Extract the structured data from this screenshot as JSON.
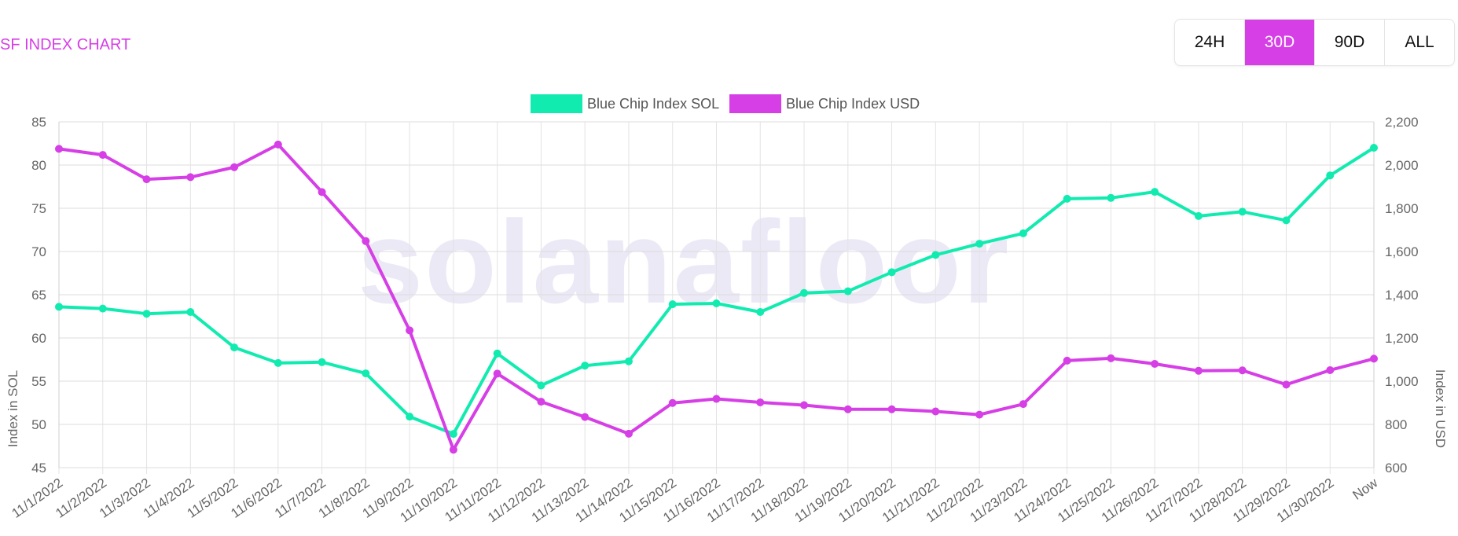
{
  "header": {
    "title": "SF INDEX CHART"
  },
  "range_buttons": [
    {
      "label": "24H",
      "active": false
    },
    {
      "label": "30D",
      "active": true
    },
    {
      "label": "90D",
      "active": false
    },
    {
      "label": "ALL",
      "active": false
    }
  ],
  "watermark": "solanafloor",
  "colors": {
    "sol": "#12ebb0",
    "usd": "#d63ee6",
    "active_button": "#d63ee6"
  },
  "chart_data": {
    "type": "line",
    "x": [
      "11/1/2022",
      "11/2/2022",
      "11/3/2022",
      "11/4/2022",
      "11/5/2022",
      "11/6/2022",
      "11/7/2022",
      "11/8/2022",
      "11/9/2022",
      "11/10/2022",
      "11/11/2022",
      "11/12/2022",
      "11/13/2022",
      "11/14/2022",
      "11/15/2022",
      "11/16/2022",
      "11/17/2022",
      "11/18/2022",
      "11/19/2022",
      "11/20/2022",
      "11/21/2022",
      "11/22/2022",
      "11/23/2022",
      "11/24/2022",
      "11/25/2022",
      "11/26/2022",
      "11/27/2022",
      "11/28/2022",
      "11/29/2022",
      "11/30/2022",
      "Now"
    ],
    "series": [
      {
        "name": "Blue Chip Index SOL",
        "axis": "left",
        "color": "#12ebb0",
        "values": [
          63.6,
          63.4,
          62.8,
          63.0,
          58.9,
          57.1,
          57.2,
          55.9,
          50.9,
          48.9,
          58.2,
          54.5,
          56.8,
          57.3,
          63.9,
          64.0,
          63.0,
          65.2,
          65.4,
          67.6,
          69.6,
          70.9,
          72.1,
          76.1,
          76.2,
          76.9,
          74.1,
          74.6,
          73.6,
          78.8,
          82.0
        ]
      },
      {
        "name": "Blue Chip Index USD",
        "axis": "right",
        "color": "#d63ee6",
        "values": [
          2075,
          2047,
          1934,
          1944,
          1990,
          2095,
          1875,
          1648,
          1235,
          683,
          1035,
          905,
          834,
          757,
          899,
          918,
          902,
          889,
          870,
          870,
          860,
          845,
          894,
          1095,
          1106,
          1080,
          1048,
          1050,
          984,
          1051,
          1104
        ]
      }
    ],
    "y_left": {
      "label": "Index in SOL",
      "min": 45,
      "max": 85,
      "ticks": [
        "45",
        "50",
        "55",
        "60",
        "65",
        "70",
        "75",
        "80",
        "85"
      ]
    },
    "y_right": {
      "label": "Index in USD",
      "min": 600,
      "max": 2200,
      "ticks": [
        "600",
        "800",
        "1,000",
        "1,200",
        "1,400",
        "1,600",
        "1,800",
        "2,000",
        "2,200"
      ]
    },
    "grid": true,
    "legend": "top-center"
  }
}
